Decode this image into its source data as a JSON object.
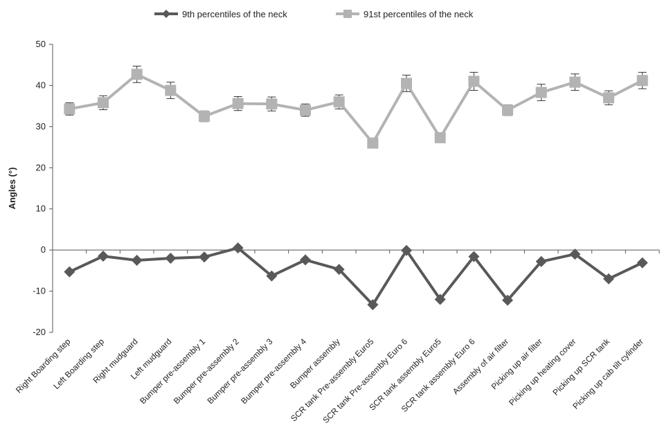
{
  "chart_data": {
    "type": "line",
    "title": "",
    "xlabel": "",
    "ylabel": "Angles (°)",
    "ylim": [
      -20,
      50
    ],
    "yticks": [
      -20,
      -10,
      0,
      10,
      20,
      30,
      40,
      50
    ],
    "grid": false,
    "legend_position": "top",
    "categories": [
      "Right Boarding step",
      "Left Boarding step",
      "Right mudguard",
      "Left mudguard",
      "Bumper pre-assembly 1",
      "Bumper pre-assembly 2",
      "Bumper pre-assembly 3",
      "Bumper pre-assembly 4",
      "Bumper assembly",
      "SCR tank Pre-assembly Euro5",
      "SCR tank Pre-assembly Euro 6",
      "SCR tank assembly Euro5",
      "SCR tank assembly Euro 6",
      "Assembly of air filter",
      "Picking up air filter",
      "Picking up heating cover",
      "Picking up SCR tank",
      "Picking up cab tilt cylinder"
    ],
    "series": [
      {
        "name": "9th percentiles of the neck",
        "color": "#595959",
        "marker": "diamond",
        "values": [
          -5.3,
          -1.5,
          -2.5,
          -2.0,
          -1.7,
          0.5,
          -6.3,
          -2.4,
          -4.7,
          -13.3,
          -0.1,
          -12.0,
          -1.6,
          -12.2,
          -2.8,
          -1.0,
          -7.0,
          -3.1
        ]
      },
      {
        "name": "91st percentiles of the neck",
        "color": "#b3b3b3",
        "marker": "square",
        "values": [
          34.3,
          35.8,
          42.7,
          38.8,
          32.5,
          35.6,
          35.5,
          34.0,
          36.0,
          26.0,
          40.5,
          27.3,
          41.0,
          34.0,
          38.3,
          40.8,
          37.0,
          41.2
        ],
        "error": [
          1.5,
          1.7,
          2.0,
          2.0,
          1.3,
          1.7,
          1.7,
          1.5,
          1.7,
          0,
          2.0,
          0,
          2.2,
          1.3,
          2.0,
          2.0,
          1.7,
          2.0
        ]
      }
    ]
  }
}
